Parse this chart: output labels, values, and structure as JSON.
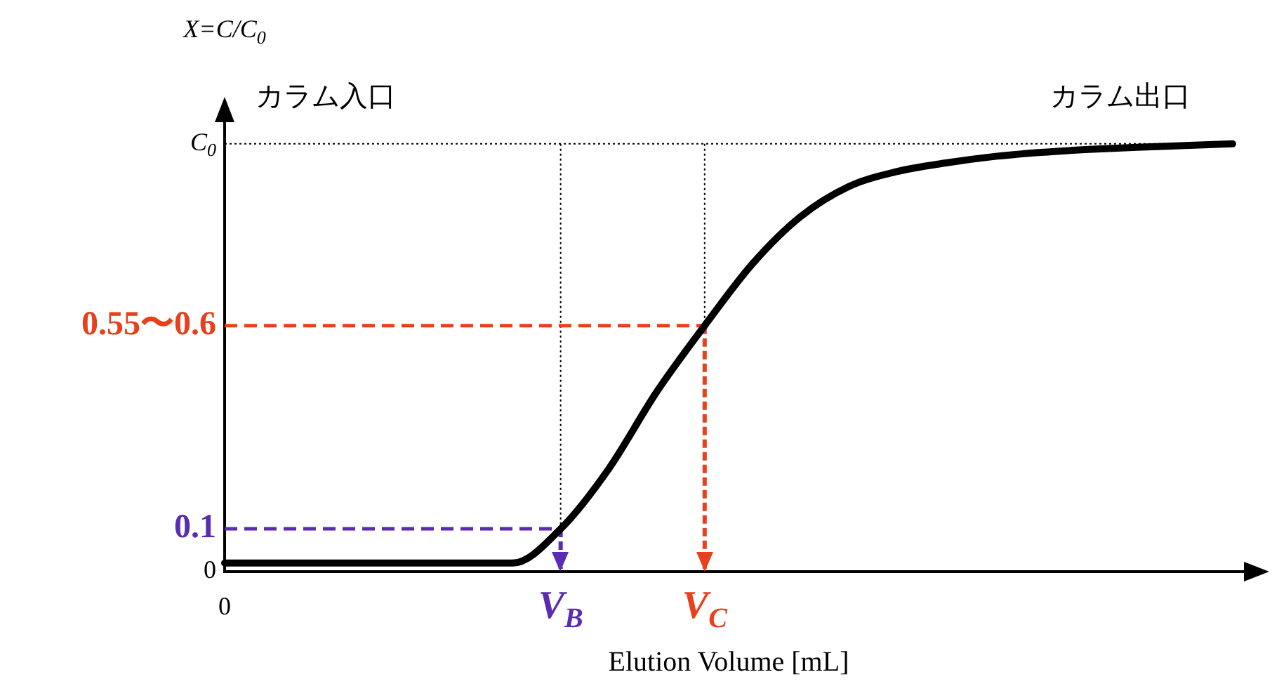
{
  "chart_data": {
    "type": "line",
    "xlabel": "Elution Volume [mL]",
    "ylabel": "X=C/C$_{0}$",
    "annotations": [
      "カラム入口",
      "カラム出口"
    ],
    "categories": [
      "0",
      null,
      null,
      null,
      null,
      null,
      null,
      "V$_{B}$",
      null,
      null,
      "V$_{C}$",
      null,
      null,
      null,
      null,
      null,
      null,
      null,
      null,
      null,
      null,
      null
    ],
    "series": [
      {
        "color": "#000000",
        "values": [
          0.02,
          0.02,
          0.02,
          0.02,
          0.02,
          0.02,
          0.02,
          0.1,
          0.24,
          0.42,
          0.575,
          0.72,
          0.83,
          0.9,
          0.935,
          0.955,
          0.97,
          0.98,
          0.987,
          0.992,
          0.996,
          1.0
        ]
      }
    ],
    "ylim": [
      0,
      1.09
    ],
    "yticks": [
      0,
      0.1,
      {
        "value": 0.575,
        "label": "0.55〜0.6"
      }
    ],
    "ref_lines": [
      {
        "axis": "y",
        "value": 1,
        "label": "C$_{0}$",
        "line_style": "dotted",
        "color": "#000000"
      },
      {
        "axis": "x",
        "value": "V$_{B}$",
        "line_style": "dashed",
        "color": "#5b2bb0"
      },
      {
        "axis": "x",
        "value": "V$_{C}$",
        "line_style": "dotted",
        "color": "#000000"
      },
      {
        "axis": "y",
        "value": 0.1,
        "line_style": "dashed",
        "color": "#5b2bb0"
      },
      {
        "axis": "x",
        "value": "V$_{B}$",
        "line_style": "dotted",
        "color": "#000000"
      },
      {
        "axis": "y",
        "value": 0.575,
        "line_style": "dashed",
        "color": "#e8401c"
      },
      {
        "axis": "x",
        "value": "V$_{C}$",
        "line_style": "dashed",
        "color": "#e8401c"
      }
    ],
    "grid": false,
    "legend": false,
    "marker": "none",
    "line_style": "solid"
  }
}
